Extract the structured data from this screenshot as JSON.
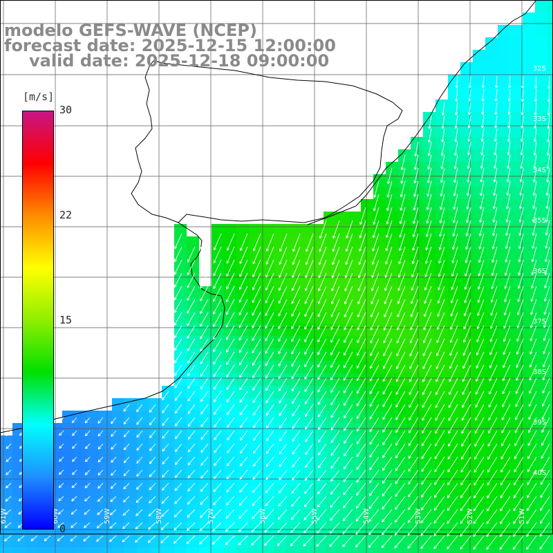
{
  "title": {
    "line1": "modelo GEFS-WAVE (NCEP)",
    "line2": "forecast date: 2025-12-15 12:00:00",
    "line3": "valid date: 2025-12-18 09:00:00"
  },
  "colorbar": {
    "units": "[m/s]",
    "ticks": [
      "30",
      "22",
      "15",
      "0"
    ],
    "stops": [
      "#0000ff",
      "#1e90ff",
      "#00ffff",
      "#00e000",
      "#90ee00",
      "#ffff00",
      "#ff8c00",
      "#ff0000",
      "#c71585"
    ]
  },
  "map_labels": {
    "lat": [
      "32S",
      "33S",
      "34S",
      "35S",
      "36S",
      "37S",
      "38S",
      "39S",
      "40S"
    ],
    "lon": [
      "61W",
      "60W",
      "59W",
      "58W",
      "57W",
      "56W",
      "55W",
      "54W",
      "53W",
      "52W",
      "51W"
    ]
  },
  "colors": {
    "background": "#ffffff",
    "grid": "#555555",
    "coast": "#000000",
    "arrows": "#ffffff",
    "title": "#8a8a8a"
  }
}
